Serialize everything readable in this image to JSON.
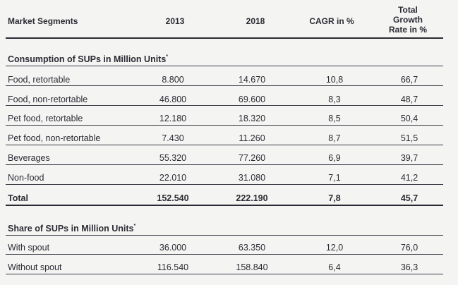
{
  "header": {
    "col_segments": "Market Segments",
    "col_2013": "2013",
    "col_2018": "2018",
    "col_cagr": "CAGR in %",
    "col_total_line1": "Total",
    "col_total_line2": "Growth",
    "col_total_line3": "Rate in %"
  },
  "section1": {
    "title": "Consumption of SUPs in Million Units",
    "footnote_mark": "*",
    "rows": [
      {
        "label": "Food, retortable",
        "v2013": "8.800",
        "v2018": "14.670",
        "cagr": "10,8",
        "total": "66,7"
      },
      {
        "label": "Food, non-retortable",
        "v2013": "46.800",
        "v2018": "69.600",
        "cagr": "8,3",
        "total": "48,7"
      },
      {
        "label": "Pet food, retortable",
        "v2013": "12.180",
        "v2018": "18.320",
        "cagr": "8,5",
        "total": "50,4"
      },
      {
        "label": "Pet food, non-retortable",
        "v2013": "7.430",
        "v2018": "11.260",
        "cagr": "8,7",
        "total": "51,5"
      },
      {
        "label": "Beverages",
        "v2013": "55.320",
        "v2018": "77.260",
        "cagr": "6,9",
        "total": "39,7"
      },
      {
        "label": "Non-food",
        "v2013": "22.010",
        "v2018": "31.080",
        "cagr": "7,1",
        "total": "41,2"
      }
    ],
    "total_row": {
      "label": "Total",
      "v2013": "152.540",
      "v2018": "222.190",
      "cagr": "7,8",
      "total": "45,7"
    }
  },
  "section2": {
    "title": "Share of SUPs in Million Units",
    "footnote_mark": "*",
    "rows": [
      {
        "label": "With spout",
        "v2013": "36.000",
        "v2018": "63.350",
        "cagr": "12,0",
        "total": "76,0"
      },
      {
        "label": "Without spout",
        "v2013": "116.540",
        "v2018": "158.840",
        "cagr": "6,4",
        "total": "36,3"
      }
    ]
  }
}
